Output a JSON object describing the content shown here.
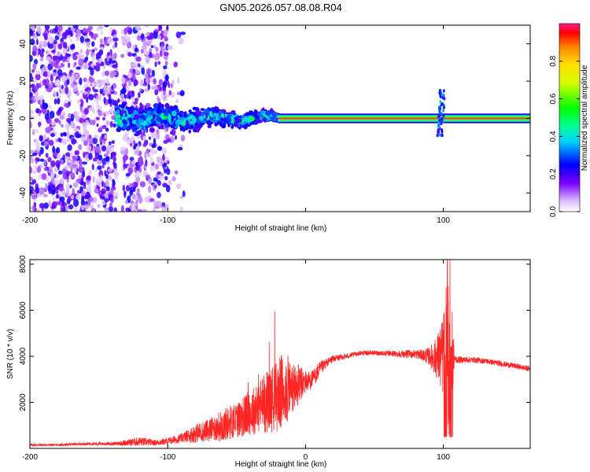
{
  "title": "GN05.2026.057.08.08.R04",
  "colors": {
    "snr_line": "#ff0000",
    "ridge": "#ff2f5c",
    "frame": "#000000"
  },
  "chart_data": [
    {
      "type": "heatmap",
      "title": "GN05.2026.057.08.08.R04",
      "xlabel": "Height of straight line (km)",
      "ylabel": "Frequency (Hz)",
      "xlim": [
        -200,
        163
      ],
      "ylim": [
        -50,
        50
      ],
      "xticks": [
        -200,
        -100,
        0,
        100
      ],
      "xtick_labels": [
        "-200",
        "-100",
        "",
        "100"
      ],
      "yticks": [
        -40,
        -20,
        0,
        20,
        40
      ],
      "ytick_labels": [
        "-40",
        "-20",
        "0",
        "20",
        "40"
      ],
      "colorbar": {
        "label": "Normalized spectral amplitude",
        "range": [
          0.0,
          1.0
        ],
        "ticks": [
          0.0,
          0.2,
          0.4,
          0.6,
          0.8
        ],
        "tick_labels": [
          "0.0",
          "0.2",
          "0.4",
          "0.6",
          "0.8"
        ]
      },
      "regions": [
        {
          "name": "noise",
          "x_range": [
            -200,
            -137
          ],
          "freq_range": [
            -50,
            50
          ],
          "amplitude": 0.1
        },
        {
          "name": "noise",
          "x_range": [
            -133,
            -100
          ],
          "freq_range": [
            -50,
            50
          ],
          "amplitude": 0.1
        },
        {
          "name": "turbulent",
          "x_range": [
            -137,
            -20
          ],
          "freq_range": [
            -10,
            10
          ],
          "amplitude": 0.3
        },
        {
          "name": "steady",
          "x_range": [
            -20,
            163
          ],
          "freq": 0,
          "amplitude": 0.95
        },
        {
          "name": "spike",
          "x": 98,
          "freq_range": [
            -10,
            15
          ],
          "amplitude": 0.3
        }
      ]
    },
    {
      "type": "line",
      "xlabel": "Height of straight line (km)",
      "ylabel": "SNR (10 * v/v)",
      "xlim": [
        -200,
        163
      ],
      "ylim": [
        0,
        8200
      ],
      "xticks": [
        -200,
        -100,
        0,
        100
      ],
      "xtick_labels": [
        "-200",
        "-100",
        "0",
        "100"
      ],
      "yticks": [
        2000,
        4000,
        6000,
        8000
      ],
      "ytick_labels": [
        "2000",
        "4000",
        "6000",
        "8000"
      ],
      "series": [
        {
          "name": "SNR",
          "x": [
            -200,
            -180,
            -160,
            -140,
            -120,
            -110,
            -100,
            -90,
            -80,
            -70,
            -60,
            -50,
            -40,
            -30,
            -20,
            -15,
            -10,
            -5,
            0,
            5,
            10,
            15,
            20,
            30,
            40,
            50,
            60,
            70,
            80,
            85,
            90,
            95,
            100,
            102,
            105,
            108,
            110,
            120,
            130,
            140,
            150,
            163
          ],
          "values": [
            150,
            150,
            200,
            200,
            300,
            250,
            300,
            450,
            650,
            800,
            1000,
            1250,
            1550,
            1950,
            2300,
            2550,
            2600,
            2750,
            2900,
            3000,
            3400,
            3700,
            3900,
            4000,
            4150,
            4150,
            4120,
            4100,
            4100,
            4050,
            4000,
            3950,
            4000,
            3800,
            3950,
            3900,
            3850,
            3850,
            3800,
            3700,
            3600,
            3450
          ],
          "noise_amplitude": [
            50,
            50,
            60,
            70,
            200,
            120,
            150,
            200,
            400,
            500,
            700,
            800,
            1000,
            1300,
            1600,
            1700,
            1200,
            900,
            500,
            400,
            350,
            200,
            150,
            120,
            100,
            100,
            120,
            150,
            200,
            250,
            400,
            900,
            1800,
            3500,
            3500,
            200,
            150,
            130,
            120,
            120,
            120,
            120
          ]
        }
      ]
    }
  ]
}
